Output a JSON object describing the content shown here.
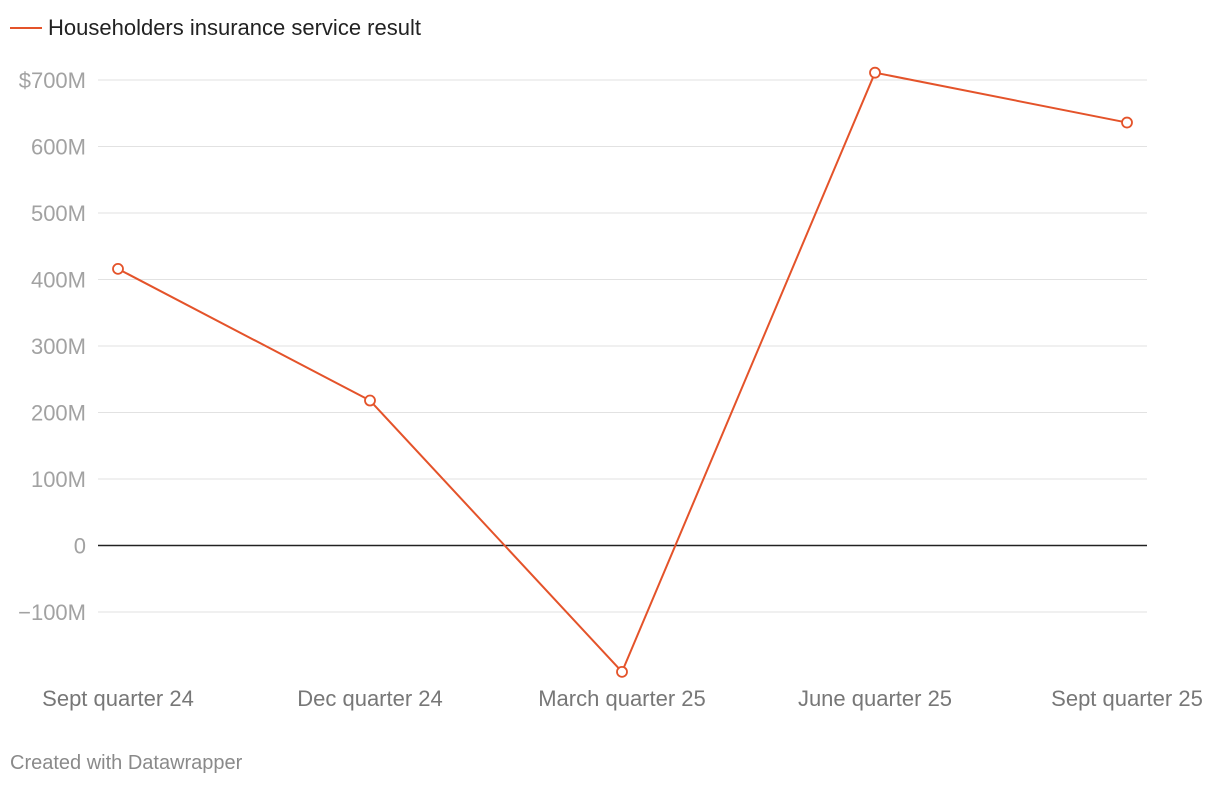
{
  "colors": {
    "series": "#e4532a",
    "grid": "#e2e2e2",
    "zero_line": "#222222",
    "y_tick_text": "#a2a2a2",
    "x_tick_text": "#777777"
  },
  "footer": {
    "credit": "Created with Datawrapper"
  },
  "chart_data": {
    "type": "line",
    "title": "",
    "xlabel": "",
    "ylabel": "",
    "categories": [
      "Sept quarter 24",
      "Dec quarter 24",
      "March quarter 25",
      "June quarter 25",
      "Sept quarter 25"
    ],
    "series": [
      {
        "name": "Householders insurance service result",
        "values": [
          416,
          218,
          -190,
          711,
          636
        ],
        "unit": "millions of dollars"
      }
    ],
    "ylim": [
      -190,
      700
    ],
    "y_ticks": [
      {
        "value": 700,
        "label": "$700M"
      },
      {
        "value": 600,
        "label": "600M"
      },
      {
        "value": 500,
        "label": "500M"
      },
      {
        "value": 400,
        "label": "400M"
      },
      {
        "value": 300,
        "label": "300M"
      },
      {
        "value": 200,
        "label": "200M"
      },
      {
        "value": 100,
        "label": "100M"
      },
      {
        "value": 0,
        "label": "0"
      },
      {
        "value": -100,
        "label": "−100M"
      }
    ],
    "grid": true,
    "legend_position": "top-left"
  }
}
